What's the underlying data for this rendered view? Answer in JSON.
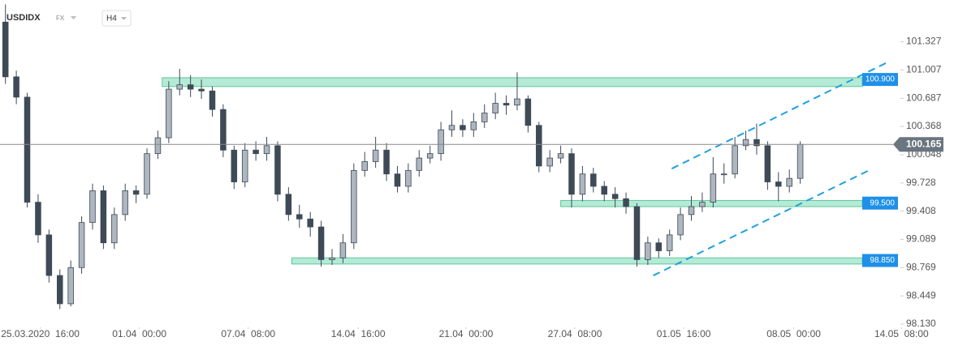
{
  "chart_data": {
    "type": "candlestick",
    "title": "USDIDX",
    "market": "FX",
    "timeframe": "H4",
    "x": [
      0,
      1,
      2,
      3,
      4,
      5,
      6,
      7,
      8,
      9,
      10,
      11,
      12,
      13,
      14,
      15,
      16,
      17,
      18,
      19,
      20,
      21,
      22,
      23,
      24,
      25,
      26,
      27,
      28,
      29,
      30,
      31,
      32,
      33,
      34,
      35,
      36,
      37,
      38,
      39,
      40,
      41,
      42,
      43,
      44,
      45,
      46,
      47,
      48,
      49,
      50,
      51,
      52,
      53,
      54,
      55,
      56,
      57,
      58,
      59,
      60,
      61,
      62,
      63,
      64,
      65,
      66,
      67,
      68,
      69,
      70,
      71,
      72,
      73
    ],
    "open": [
      101.55,
      100.93,
      100.7,
      99.51,
      99.14,
      98.68,
      98.36,
      98.77,
      99.28,
      99.64,
      99.05,
      99.37,
      99.64,
      99.6,
      100.06,
      100.24,
      100.79,
      100.84,
      100.79,
      100.77,
      100.56,
      100.1,
      99.74,
      100.1,
      100.06,
      100.15,
      99.6,
      99.37,
      99.32,
      99.23,
      98.86,
      98.88,
      99.05,
      99.87,
      99.97,
      100.1,
      99.83,
      99.69,
      99.87,
      100.01,
      100.06,
      100.33,
      100.38,
      100.33,
      100.42,
      100.52,
      100.63,
      100.61,
      100.68,
      100.38,
      99.92,
      100.01,
      100.06,
      99.6,
      99.83,
      99.69,
      99.6,
      99.55,
      99.46,
      98.86,
      99.05,
      98.96,
      99.14,
      99.37,
      99.46,
      99.51,
      99.83,
      99.83,
      100.15,
      100.22,
      100.15,
      99.74,
      99.69,
      99.78
    ],
    "high": [
      101.75,
      101.0,
      100.75,
      99.6,
      99.2,
      98.75,
      98.85,
      99.35,
      99.72,
      99.7,
      99.45,
      99.72,
      99.7,
      100.12,
      100.32,
      100.88,
      101.02,
      100.95,
      100.9,
      100.82,
      100.62,
      100.15,
      100.18,
      100.2,
      100.25,
      100.2,
      99.68,
      99.48,
      99.4,
      99.3,
      98.98,
      99.15,
      99.95,
      100.08,
      100.25,
      100.18,
      99.92,
      99.95,
      100.1,
      100.15,
      100.42,
      100.55,
      100.45,
      100.52,
      100.62,
      100.75,
      100.72,
      100.98,
      100.72,
      100.42,
      100.1,
      100.15,
      100.12,
      99.92,
      99.9,
      99.75,
      99.68,
      99.62,
      99.5,
      99.12,
      99.1,
      99.2,
      99.45,
      99.58,
      99.62,
      100.02,
      99.95,
      100.25,
      100.32,
      100.4,
      100.2,
      99.85,
      99.88,
      100.2
    ],
    "low": [
      100.85,
      100.62,
      99.45,
      99.05,
      98.6,
      98.3,
      98.33,
      98.7,
      99.2,
      98.98,
      98.98,
      99.3,
      99.5,
      99.55,
      100.0,
      100.18,
      100.72,
      100.7,
      100.68,
      100.48,
      100.02,
      99.66,
      99.68,
      99.98,
      99.98,
      99.52,
      99.3,
      99.22,
      99.12,
      98.78,
      98.8,
      98.82,
      98.98,
      99.8,
      99.9,
      99.75,
      99.62,
      99.62,
      99.8,
      99.95,
      99.98,
      100.25,
      100.25,
      100.25,
      100.35,
      100.45,
      100.5,
      100.55,
      100.3,
      99.85,
      99.85,
      99.95,
      99.45,
      99.52,
      99.62,
      99.52,
      99.45,
      99.38,
      98.78,
      98.8,
      98.88,
      98.9,
      99.08,
      99.3,
      99.4,
      99.45,
      99.72,
      99.78,
      100.1,
      100.05,
      99.65,
      99.52,
      99.62,
      99.72
    ],
    "close": [
      100.93,
      100.7,
      99.51,
      99.14,
      98.68,
      98.36,
      98.77,
      99.28,
      99.64,
      99.05,
      99.37,
      99.64,
      99.6,
      100.06,
      100.24,
      100.79,
      100.84,
      100.79,
      100.77,
      100.56,
      100.1,
      99.74,
      100.1,
      100.06,
      100.15,
      99.6,
      99.37,
      99.32,
      99.23,
      98.86,
      98.88,
      99.05,
      99.87,
      99.97,
      100.1,
      99.83,
      99.69,
      99.87,
      100.01,
      100.06,
      100.33,
      100.38,
      100.33,
      100.42,
      100.52,
      100.63,
      100.61,
      100.68,
      100.38,
      99.92,
      100.01,
      100.06,
      99.6,
      99.83,
      99.69,
      99.6,
      99.55,
      99.46,
      98.86,
      99.05,
      98.96,
      99.14,
      99.37,
      99.46,
      99.51,
      99.83,
      99.83,
      100.15,
      100.22,
      100.15,
      99.74,
      99.69,
      99.78,
      100.165
    ],
    "up_color": "#aeb6bf",
    "down_color": "#3e4a56",
    "zone_color": "#a8e6cf",
    "zone_label_color": "#1e90e8",
    "trend_color": "#1fa0e0",
    "zones": [
      {
        "value": 100.9,
        "label": "100.900",
        "band": [
          100.82,
          100.92
        ],
        "start": 14.4
      },
      {
        "value": 99.5,
        "label": "99.500",
        "band": [
          99.46,
          99.53
        ],
        "start": 51
      },
      {
        "value": 98.85,
        "label": "98.850",
        "band": [
          98.81,
          98.88
        ],
        "start": 26.3
      }
    ],
    "trend_lines": [
      {
        "x": [
          61.2,
          81.1
        ],
        "y": [
          99.89,
          101.1
        ]
      },
      {
        "x": [
          59.5,
          79.3
        ],
        "y": [
          98.68,
          99.87
        ]
      }
    ],
    "xlim": [
      -0.5,
      82.5
    ],
    "ylim": [
      98.13,
      101.8
    ],
    "yticks": [
      101.327,
      101.007,
      100.687,
      100.368,
      100.048,
      99.728,
      99.408,
      99.089,
      98.769,
      98.449,
      {
        "value": 98.13,
        "label": "98.130"
      }
    ],
    "xticks": [
      {
        "value": 3.2,
        "label": "25.03.2020  16:00"
      },
      {
        "value": 12.3,
        "label": "01.04  00:00"
      },
      {
        "value": 22.3,
        "label": "07.04  08:00"
      },
      {
        "value": 32.4,
        "label": "14.04  16:00"
      },
      {
        "value": 42.3,
        "label": "21.04  00:00"
      },
      {
        "value": 52.3,
        "label": "27.04  08:00"
      },
      {
        "value": 62.3,
        "label": "01.05  16:00"
      },
      {
        "value": 72.4,
        "label": "08.05  00:00"
      },
      {
        "value": 82.3,
        "label": "14.05  08:00"
      }
    ]
  }
}
